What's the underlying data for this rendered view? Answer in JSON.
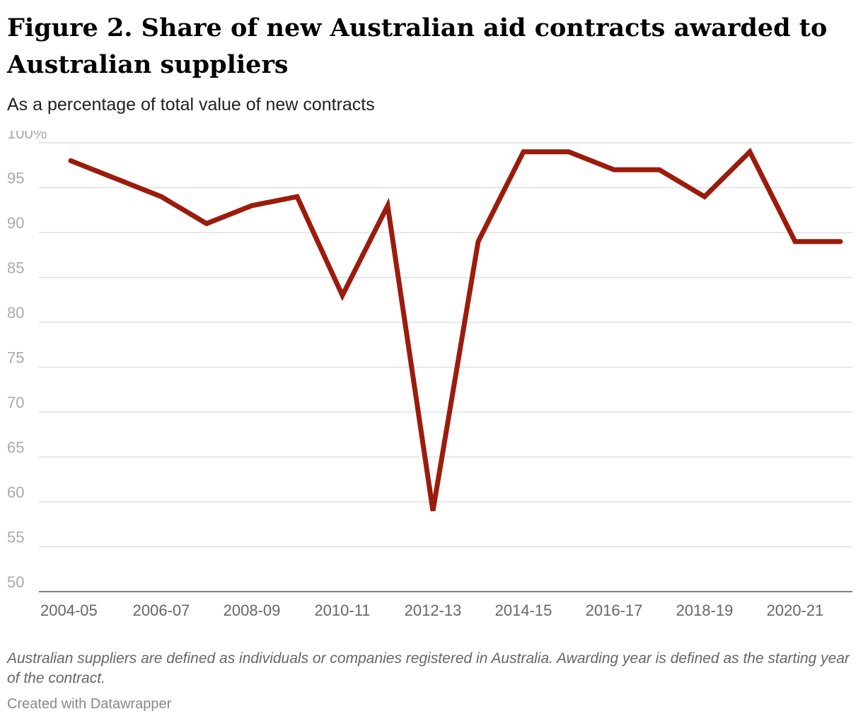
{
  "title": "Figure 2. Share of new Australian aid contracts awarded to Australian suppliers",
  "subtitle": "As a percentage of total value of new contracts",
  "note": "Australian suppliers are defined as individuals or companies registered in Australia. Awarding year is defined as the starting year of the contract.",
  "credit": "Created with Datawrapper",
  "colors": {
    "line": "#9b1c0c",
    "grid": "#e0e0e0",
    "axis": "#333333"
  },
  "chart_data": {
    "type": "line",
    "x": [
      "2004-05",
      "2005-06",
      "2006-07",
      "2007-08",
      "2008-09",
      "2009-10",
      "2010-11",
      "2011-12",
      "2012-13",
      "2013-14",
      "2014-15",
      "2015-16",
      "2016-17",
      "2017-18",
      "2018-19",
      "2019-20",
      "2020-21",
      "2021-22"
    ],
    "series": [
      {
        "values": [
          98,
          96,
          94,
          91,
          93,
          94,
          83,
          93,
          59,
          89,
          99,
          99,
          97,
          97,
          94,
          99,
          89,
          89
        ]
      }
    ],
    "xticks": [
      "2004-05",
      "2006-07",
      "2008-09",
      "2010-11",
      "2012-13",
      "2014-15",
      "2016-17",
      "2018-19",
      "2020-21"
    ],
    "yticks": [
      {
        "value": 100,
        "label": "100%"
      },
      {
        "value": 95,
        "label": "95"
      },
      {
        "value": 90,
        "label": "90"
      },
      {
        "value": 85,
        "label": "85"
      },
      {
        "value": 80,
        "label": "80"
      },
      {
        "value": 75,
        "label": "75"
      },
      {
        "value": 70,
        "label": "70"
      },
      {
        "value": 65,
        "label": "65"
      },
      {
        "value": 60,
        "label": "60"
      },
      {
        "value": 55,
        "label": "55"
      },
      {
        "value": 50,
        "label": "50"
      }
    ],
    "ylim": [
      50,
      100
    ],
    "grid": true,
    "legend": "none"
  }
}
